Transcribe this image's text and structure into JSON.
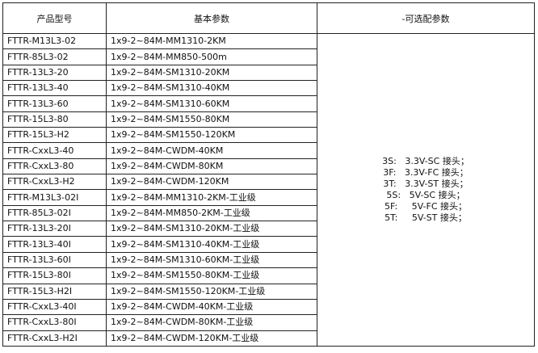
{
  "headers": [
    "产品型号",
    "基本参数",
    "-可选配参数"
  ],
  "rows": [
    {
      "model": "FTTR-M13L3-02",
      "params": "1x9-2~84M-MM1310-2KM"
    },
    {
      "model": "FTTR-85L3-02",
      "params": "1x9-2~84M-MM850-500m"
    },
    {
      "model": "FTTR-13L3-20",
      "params": "1x9-2~84M-SM1310-20KM"
    },
    {
      "model": "FTTR-13L3-40",
      "params": "1x9-2~84M-SM1310-40KM"
    },
    {
      "model": "FTTR-13L3-60",
      "params": "1x9-2~84M-SM1310-60KM"
    },
    {
      "model": "FTTR-15L3-80",
      "params": "1x9-2~84M-SM1550-80KM"
    },
    {
      "model": "FTTR-15L3-H2",
      "params": "1x9-2~84M-SM1550-120KM"
    },
    {
      "model": "FTTR-CxxL3-40",
      "params": "1x9-2~84M-CWDM-40KM"
    },
    {
      "model": "FTTR-CxxL3-80",
      "params": "1x9-2~84M-CWDM-80KM"
    },
    {
      "model": "FTTR-CxxL3-H2",
      "params": "1x9-2~84M-CWDM-120KM"
    },
    {
      "model": "FTTR-M13L3-02I",
      "params": "1x9-2~84M-MM1310-2KM-工业级"
    },
    {
      "model": "FTTR-85L3-02I",
      "params": "1x9-2~84M-MM850-2KM-工业级"
    },
    {
      "model": "FTTR-13L3-20I",
      "params": "1x9-2~84M-SM1310-20KM-工业级"
    },
    {
      "model": "FTTR-13L3-40I",
      "params": "1x9-2~84M-SM1310-40KM-工业级"
    },
    {
      "model": "FTTR-13L3-60I",
      "params": "1x9-2~84M-SM1310-60KM-工业级"
    },
    {
      "model": "FTTR-15L3-80I",
      "params": "1x9-2~84M-SM1550-80KM-工业级"
    },
    {
      "model": "FTTR-15L3-H2I",
      "params": "1x9-2~84M-SM1550-120KM-工业级"
    },
    {
      "model": "FTTR-CxxL3-40I",
      "params": "1x9-2~84M-CWDM-40KM-工业级"
    },
    {
      "model": "FTTR-CxxL3-80I",
      "params": "1x9-2~84M-CWDM-80KM-工业级"
    },
    {
      "model": "FTTR-CxxL3-H2I",
      "params": "1x9-2~84M-CWDM-120KM-工业级"
    }
  ],
  "options": [
    "3S:   3.3V-SC 接头；",
    "3F:   3.3V-FC 接头；",
    "3T:   3.3V-ST 接头；",
    "5S:   5V-SC 接头；",
    "5F:     5V-FC 接头；",
    "5T:     5V-ST 接头；"
  ]
}
